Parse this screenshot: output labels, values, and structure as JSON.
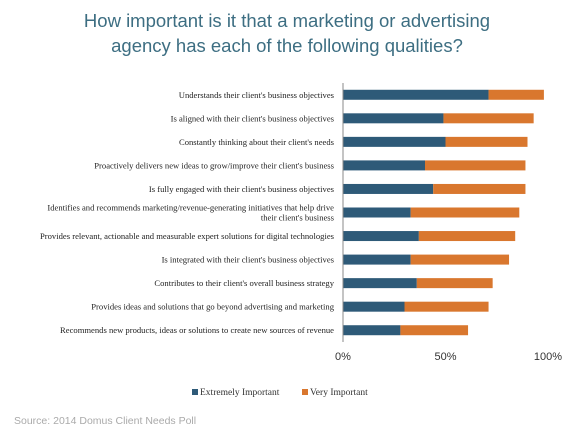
{
  "chart_data": {
    "type": "bar",
    "orientation": "horizontal",
    "stacked": true,
    "title": "How important is it that a marketing or advertising agency has each of the following qualities?",
    "title_lines": [
      "How important is it that a marketing or advertising",
      "agency has each of the following qualities?"
    ],
    "categories": [
      [
        "Understands their client's business objectives"
      ],
      [
        "Is aligned with their client's business objectives"
      ],
      [
        "Constantly thinking about their client's needs"
      ],
      [
        "Proactively delivers new ideas to grow/improve their client's business"
      ],
      [
        "Is fully engaged with their client's business objectives"
      ],
      [
        "Identifies and recommends marketing/revenue-generating initiatives that help drive",
        "their client's business"
      ],
      [
        "Provides relevant, actionable and measurable expert solutions for digital technologies"
      ],
      [
        "Is integrated with their client's business objectives"
      ],
      [
        "Contributes to their client's overall business strategy"
      ],
      [
        "Provides ideas and solutions that go beyond advertising and marketing"
      ],
      [
        "Recommends new products, ideas or solutions to create new sources of revenue"
      ]
    ],
    "series": [
      {
        "name": "Extremely Important",
        "color": "#2e5a78",
        "values": [
          71,
          49,
          50,
          40,
          44,
          33,
          37,
          33,
          36,
          30,
          28
        ]
      },
      {
        "name": "Very Important",
        "color": "#d9772e",
        "values": [
          27,
          44,
          40,
          49,
          45,
          53,
          47,
          48,
          37,
          41,
          33
        ]
      }
    ],
    "xlim": [
      0,
      100
    ],
    "x_ticks": [
      "0%",
      "50%",
      "100%"
    ],
    "legend_position": "bottom",
    "grid": false
  },
  "footer": {
    "source": "Source: 2014 Domus Client Needs Poll"
  }
}
